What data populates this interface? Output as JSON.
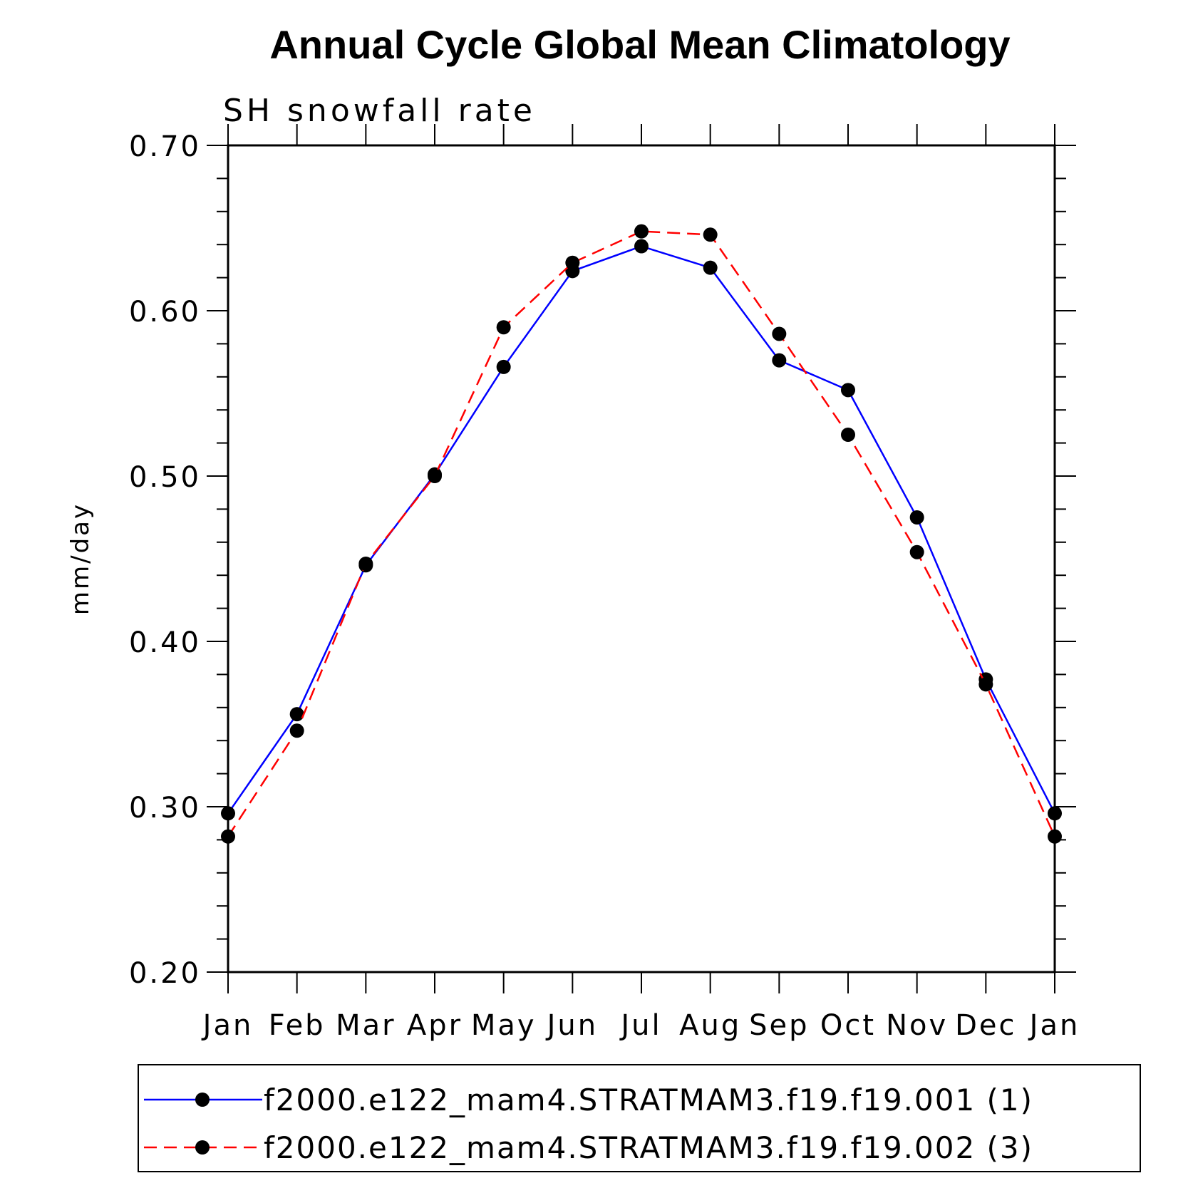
{
  "chart_data": {
    "type": "line",
    "title": "Annual Cycle Global Mean Climatology",
    "subtitle": "SH snowfall rate",
    "xlabel": "",
    "ylabel": "mm/day",
    "ylim": [
      0.2,
      0.7
    ],
    "yticks": [
      "0.20",
      "0.30",
      "0.40",
      "0.50",
      "0.60",
      "0.70"
    ],
    "categories": [
      "Jan",
      "Feb",
      "Mar",
      "Apr",
      "May",
      "Jun",
      "Jul",
      "Aug",
      "Sep",
      "Oct",
      "Nov",
      "Dec",
      "Jan"
    ],
    "series": [
      {
        "name": "f2000.e122_mam4.STRATMAM3.f19.f19.001 (1)",
        "color": "#0000ff",
        "dash": "solid",
        "values": [
          0.296,
          0.356,
          0.446,
          0.501,
          0.566,
          0.624,
          0.639,
          0.626,
          0.57,
          0.552,
          0.475,
          0.377,
          0.296
        ]
      },
      {
        "name": "f2000.e122_mam4.STRATMAM3.f19.f19.002 (3)",
        "color": "#ff0000",
        "dash": "dashed",
        "values": [
          0.282,
          0.346,
          0.447,
          0.5,
          0.59,
          0.629,
          0.648,
          0.646,
          0.586,
          0.525,
          0.454,
          0.374,
          0.282
        ]
      }
    ]
  }
}
